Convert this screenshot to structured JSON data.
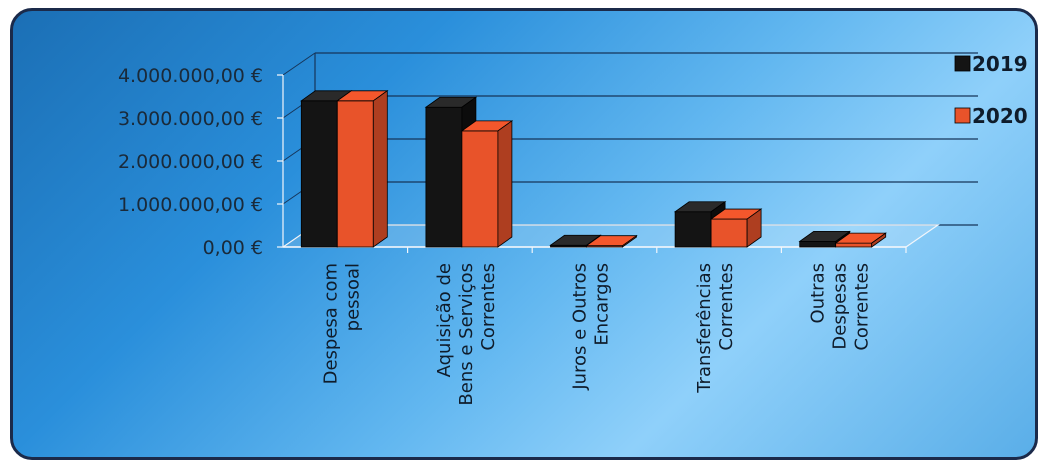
{
  "chart_data": {
    "type": "bar",
    "categories": [
      [
        "Despesa com",
        "pessoal"
      ],
      [
        "Aquisição de",
        "Bens e Serviços",
        "Correntes"
      ],
      [
        "Juros e Outros",
        "Encargos"
      ],
      [
        "Transferências",
        "Correntes"
      ],
      [
        "Outras",
        "Despesas",
        "Correntes"
      ]
    ],
    "series": [
      {
        "name": "2019",
        "color": "#141414",
        "values": [
          3400000,
          3250000,
          40000,
          820000,
          130000
        ]
      },
      {
        "name": "2020",
        "color": "#e8532a",
        "values": [
          3400000,
          2700000,
          30000,
          650000,
          90000
        ]
      }
    ],
    "ylim": [
      0,
      4000000
    ],
    "yticks": [
      "0,00 €",
      "1.000.000,00 €",
      "2.000.000,00 €",
      "3.000.000,00 €",
      "4.000.000,00 €"
    ],
    "ytick_values": [
      0,
      1000000,
      2000000,
      3000000,
      4000000
    ],
    "legend_position": "right",
    "style": "3d-clustered-column",
    "grid": true
  }
}
